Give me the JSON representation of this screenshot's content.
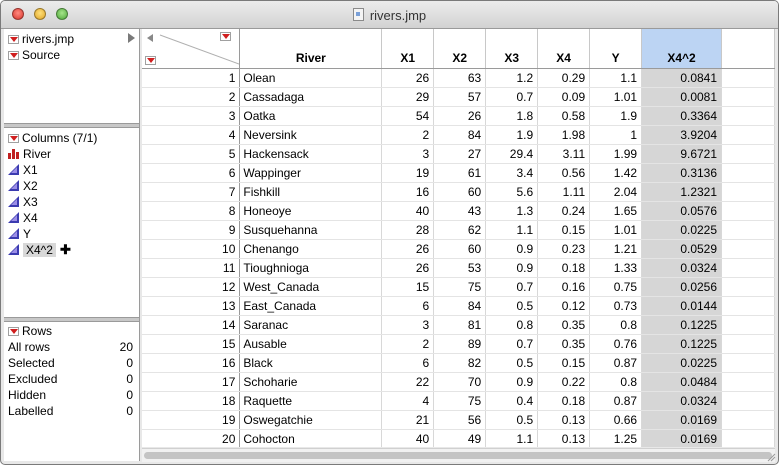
{
  "window": {
    "title": "rivers.jmp"
  },
  "table_panel": {
    "name": "rivers.jmp",
    "source": "Source"
  },
  "columns_panel": {
    "header": "Columns (7/1)",
    "items": [
      {
        "label": "River",
        "type": "nominal"
      },
      {
        "label": "X1",
        "type": "continuous"
      },
      {
        "label": "X2",
        "type": "continuous"
      },
      {
        "label": "X3",
        "type": "continuous"
      },
      {
        "label": "X4",
        "type": "continuous"
      },
      {
        "label": "Y",
        "type": "continuous"
      },
      {
        "label": "X4^2",
        "type": "continuous",
        "selected": true
      }
    ]
  },
  "rows_panel": {
    "header": "Rows",
    "items": [
      {
        "label": "All rows",
        "value": "20"
      },
      {
        "label": "Selected",
        "value": "0"
      },
      {
        "label": "Excluded",
        "value": "0"
      },
      {
        "label": "Hidden",
        "value": "0"
      },
      {
        "label": "Labelled",
        "value": "0"
      }
    ]
  },
  "grid": {
    "headers": [
      "River",
      "X1",
      "X2",
      "X3",
      "X4",
      "Y",
      "X4^2"
    ],
    "selected_column": "X4^2",
    "rows": [
      [
        "1",
        "Olean",
        "26",
        "63",
        "1.2",
        "0.29",
        "1.1",
        "0.0841"
      ],
      [
        "2",
        "Cassadaga",
        "29",
        "57",
        "0.7",
        "0.09",
        "1.01",
        "0.0081"
      ],
      [
        "3",
        "Oatka",
        "54",
        "26",
        "1.8",
        "0.58",
        "1.9",
        "0.3364"
      ],
      [
        "4",
        "Neversink",
        "2",
        "84",
        "1.9",
        "1.98",
        "1",
        "3.9204"
      ],
      [
        "5",
        "Hackensack",
        "3",
        "27",
        "29.4",
        "3.11",
        "1.99",
        "9.6721"
      ],
      [
        "6",
        "Wappinger",
        "19",
        "61",
        "3.4",
        "0.56",
        "1.42",
        "0.3136"
      ],
      [
        "7",
        "Fishkill",
        "16",
        "60",
        "5.6",
        "1.11",
        "2.04",
        "1.2321"
      ],
      [
        "8",
        "Honeoye",
        "40",
        "43",
        "1.3",
        "0.24",
        "1.65",
        "0.0576"
      ],
      [
        "9",
        "Susquehanna",
        "28",
        "62",
        "1.1",
        "0.15",
        "1.01",
        "0.0225"
      ],
      [
        "10",
        "Chenango",
        "26",
        "60",
        "0.9",
        "0.23",
        "1.21",
        "0.0529"
      ],
      [
        "11",
        "Tioughnioga",
        "26",
        "53",
        "0.9",
        "0.18",
        "1.33",
        "0.0324"
      ],
      [
        "12",
        "West_Canada",
        "15",
        "75",
        "0.7",
        "0.16",
        "0.75",
        "0.0256"
      ],
      [
        "13",
        "East_Canada",
        "6",
        "84",
        "0.5",
        "0.12",
        "0.73",
        "0.0144"
      ],
      [
        "14",
        "Saranac",
        "3",
        "81",
        "0.8",
        "0.35",
        "0.8",
        "0.1225"
      ],
      [
        "15",
        "Ausable",
        "2",
        "89",
        "0.7",
        "0.35",
        "0.76",
        "0.1225"
      ],
      [
        "16",
        "Black",
        "6",
        "82",
        "0.5",
        "0.15",
        "0.87",
        "0.0225"
      ],
      [
        "17",
        "Schoharie",
        "22",
        "70",
        "0.9",
        "0.22",
        "0.8",
        "0.0484"
      ],
      [
        "18",
        "Raquette",
        "4",
        "75",
        "0.4",
        "0.18",
        "0.87",
        "0.0324"
      ],
      [
        "19",
        "Oswegatchie",
        "21",
        "56",
        "0.5",
        "0.13",
        "0.66",
        "0.0169"
      ],
      [
        "20",
        "Cohocton",
        "40",
        "49",
        "1.1",
        "0.13",
        "1.25",
        "0.0169"
      ]
    ]
  }
}
